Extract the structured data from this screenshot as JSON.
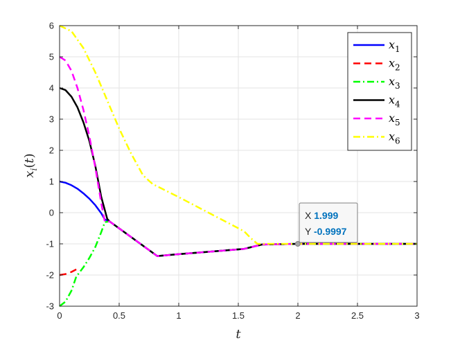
{
  "chart_data": {
    "type": "line",
    "xlabel": "t",
    "ylabel": "x_i(t)",
    "xlim": [
      0,
      3
    ],
    "ylim": [
      -3,
      6
    ],
    "xticks": [
      0,
      0.5,
      1,
      1.5,
      2,
      2.5,
      3
    ],
    "xtick_labels": [
      "0",
      "0.5",
      "1",
      "1.5",
      "2",
      "2.5",
      "3"
    ],
    "yticks": [
      -3,
      -2,
      -1,
      0,
      1,
      2,
      3,
      4,
      5,
      6
    ],
    "ytick_labels": [
      "-3",
      "-2",
      "-1",
      "0",
      "1",
      "2",
      "3",
      "4",
      "5",
      "6"
    ],
    "grid": true,
    "legend_position": "top-right",
    "series": [
      {
        "name": "x1",
        "color": "#0000ff",
        "dash": "solid",
        "x": [
          0,
          0.05,
          0.1,
          0.15,
          0.2,
          0.25,
          0.3,
          0.35,
          0.38,
          0.42,
          0.82,
          1.0,
          1.3,
          1.55,
          1.7,
          2.0,
          2.5,
          3.0
        ],
        "y": [
          1.0,
          0.96,
          0.88,
          0.77,
          0.62,
          0.45,
          0.24,
          -0.02,
          -0.22,
          -0.28,
          -1.39,
          -1.33,
          -1.24,
          -1.16,
          -1.02,
          -1.0,
          -1.0,
          -1.0
        ]
      },
      {
        "name": "x2",
        "color": "#ff0000",
        "dash": "dashed",
        "x": [
          0,
          0.05,
          0.1,
          0.14
        ],
        "y": [
          -2.0,
          -1.97,
          -1.9,
          -1.82
        ]
      },
      {
        "name": "x3",
        "color": "#00ff00",
        "dash": "dashdot",
        "x": [
          0,
          0.05,
          0.1,
          0.14,
          0.2,
          0.25,
          0.3,
          0.35,
          0.38,
          0.42,
          0.82,
          1.0,
          1.3,
          1.55,
          1.7,
          2.0,
          2.5,
          3.0
        ],
        "y": [
          -3.0,
          -2.85,
          -2.5,
          -2.05,
          -1.75,
          -1.45,
          -1.1,
          -0.62,
          -0.3,
          -0.28,
          -1.39,
          -1.33,
          -1.24,
          -1.16,
          -1.02,
          -1.0,
          -1.0,
          -1.0
        ]
      },
      {
        "name": "x4",
        "color": "#000000",
        "dash": "solid",
        "x": [
          0,
          0.05,
          0.1,
          0.15,
          0.2,
          0.25,
          0.3,
          0.35,
          0.4,
          0.42,
          0.82,
          1.0,
          1.3,
          1.55,
          1.7,
          2.0,
          2.5,
          3.0
        ],
        "y": [
          4.0,
          3.93,
          3.72,
          3.38,
          2.9,
          2.3,
          1.5,
          0.5,
          -0.2,
          -0.28,
          -1.39,
          -1.33,
          -1.24,
          -1.16,
          -1.02,
          -1.0,
          -1.0,
          -1.0
        ]
      },
      {
        "name": "x5",
        "color": "#ff00ff",
        "dash": "dashed",
        "x": [
          0,
          0.05,
          0.1,
          0.15,
          0.2,
          0.25,
          0.3,
          0.35,
          0.38,
          0.42,
          0.82,
          1.0,
          1.3,
          1.55,
          1.7,
          2.0,
          2.5,
          3.0
        ],
        "y": [
          5.0,
          4.88,
          4.55,
          4.0,
          3.3,
          2.45,
          1.45,
          0.3,
          -0.3,
          -0.28,
          -1.39,
          -1.33,
          -1.24,
          -1.16,
          -1.02,
          -1.0,
          -1.0,
          -1.0
        ]
      },
      {
        "name": "x6",
        "color": "#ffff00",
        "dash": "dashdot",
        "x": [
          0,
          0.1,
          0.2,
          0.3,
          0.4,
          0.5,
          0.6,
          0.7,
          0.78,
          1.0,
          1.2,
          1.4,
          1.55,
          1.6,
          1.66,
          2.0,
          2.5,
          3.0
        ],
        "y": [
          6.0,
          5.82,
          5.28,
          4.5,
          3.6,
          2.7,
          1.9,
          1.2,
          0.92,
          0.5,
          0.1,
          -0.3,
          -0.6,
          -0.8,
          -1.0,
          -1.0,
          -1.0,
          -1.0
        ]
      }
    ],
    "datatip": {
      "x": 1.999,
      "y": -0.9997,
      "x_label": "X",
      "y_label": "Y",
      "x_text": "1.999",
      "y_text": "-0.9997"
    }
  }
}
